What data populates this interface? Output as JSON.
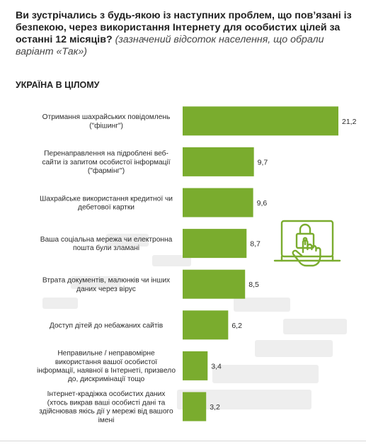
{
  "header": {
    "question_bold": "Ви зустрічались з будь-якою із наступних проблем, що пов’язані із безпекою, через використання Інтернету для особистих цілей за останні 12 місяців?",
    "question_note": "(зазначений відсоток населення, що обрали варіант «Так»)"
  },
  "section_title": "УКРАЇНА В ЦІЛОМУ",
  "colors": {
    "bar": "#7aac2e",
    "icon": "#7aac2e",
    "decor": "#e9e9e9"
  },
  "icon": {
    "name": "laptop-lock-hand-icon"
  },
  "chart_data": {
    "type": "bar",
    "orientation": "horizontal",
    "categories": [
      [
        "Отримання шахрайських повідомлень",
        "(\"фішинг\")"
      ],
      [
        "Перенаправлення на підроблені веб-",
        "сайти із запитом особистої інформації",
        "(\"фармінг\")"
      ],
      [
        "Шахрайське використання кредитної чи",
        "дебетової картки"
      ],
      [
        "Ваша соціальна мережа чи електронна",
        "пошта були зламані"
      ],
      [
        "Втрата документів, малюнків чи інших",
        "даних через вірус"
      ],
      [
        "Доступ дітей до небажаних сайтів"
      ],
      [
        "Неправильне / неправомірне",
        "використання вашої особистої",
        "інформації, наявної в Інтернеті, призвело",
        "до,  дискримінації тощо"
      ],
      [
        "Інтернет-крадіжка особистих даних",
        "(хтось викрав ваші особисті дані та",
        "здійснював якісь дії у мережі від вашого",
        "імені"
      ]
    ],
    "values": [
      21.2,
      9.7,
      9.6,
      8.7,
      8.5,
      6.2,
      3.4,
      3.2
    ],
    "value_labels": [
      "21,2",
      "9,7",
      "9,6",
      "8,7",
      "8,5",
      "6,2",
      "3,4",
      "3,2"
    ],
    "xlim": [
      0,
      21.2
    ],
    "grid": false,
    "legend": "none"
  }
}
